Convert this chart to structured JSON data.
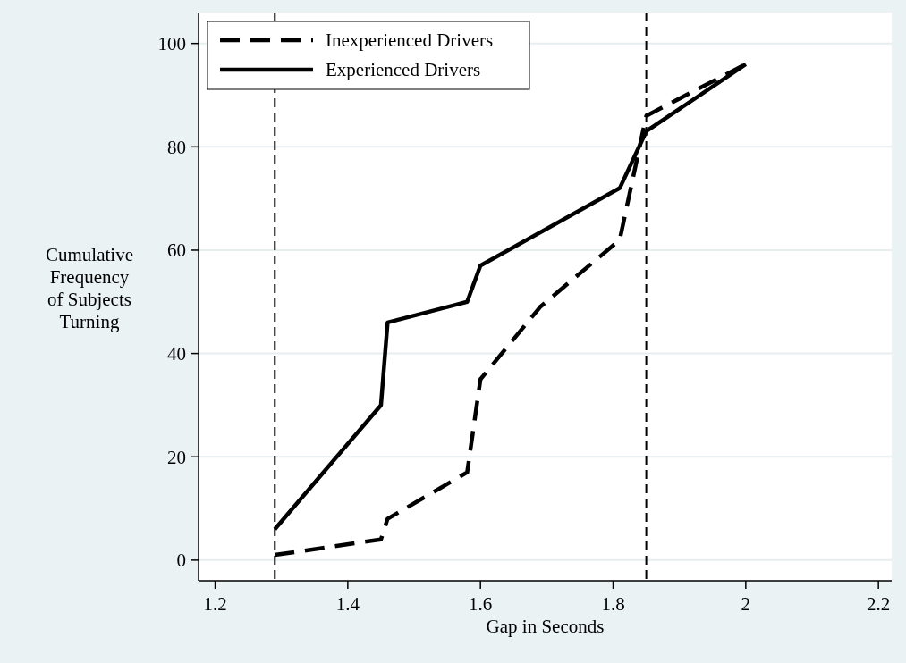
{
  "chart_data": {
    "type": "line",
    "xlabel": "Gap in Seconds",
    "ylabel": "Cumulative Frequency of Subjects Turning",
    "xlim": [
      1.175,
      2.22
    ],
    "xticks": [
      1.2,
      1.4,
      1.6,
      1.8,
      2,
      2.2
    ],
    "ylim": [
      -4,
      106
    ],
    "yticks": [
      0,
      20,
      40,
      60,
      80,
      100
    ],
    "grid": "y",
    "legend": "top left",
    "series": [
      {
        "name": "Inexperienced Drivers",
        "color": "#000000",
        "line_style": "dashed",
        "x": [
          1.29,
          1.45,
          1.46,
          1.58,
          1.6,
          1.69,
          1.81,
          1.85,
          2.0
        ],
        "values": [
          1,
          4,
          8,
          17,
          35,
          49,
          62,
          86,
          96
        ]
      },
      {
        "name": "Experienced Drivers",
        "color": "#000000",
        "line_style": "solid",
        "x": [
          1.29,
          1.45,
          1.46,
          1.58,
          1.6,
          1.81,
          1.85,
          2.0
        ],
        "values": [
          6,
          30,
          46,
          50,
          57,
          72,
          83,
          96
        ]
      }
    ],
    "ref_lines": [
      {
        "axis": "x",
        "value": 1.29,
        "color": "#000000",
        "line_style": "dashed"
      },
      {
        "axis": "x",
        "value": 1.85,
        "color": "#000000",
        "line_style": "dashed"
      }
    ]
  }
}
